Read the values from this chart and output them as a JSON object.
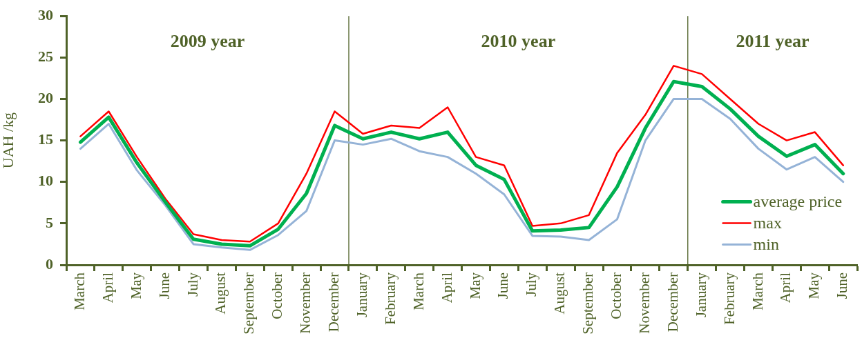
{
  "chart_data": {
    "type": "line",
    "ylabel": "UAH /kg",
    "categories": [
      "March",
      "April",
      "May",
      "June",
      "July",
      "August",
      "September",
      "October",
      "November",
      "December",
      "January",
      "February",
      "March",
      "April",
      "May",
      "June",
      "July",
      "August",
      "September",
      "October",
      "November",
      "December",
      "January",
      "February",
      "March",
      "April",
      "May",
      "June"
    ],
    "series": [
      {
        "name": "average price",
        "color": "#00b050",
        "values": [
          14.8,
          17.8,
          12.3,
          7.6,
          3.1,
          2.5,
          2.3,
          4.3,
          8.6,
          16.8,
          15.2,
          16.0,
          15.2,
          16.0,
          12.0,
          10.3,
          4.1,
          4.2,
          4.5,
          9.4,
          16.5,
          22.1,
          21.5,
          18.8,
          15.5,
          13.1,
          14.5,
          11.0
        ]
      },
      {
        "name": "max",
        "color": "#ff0000",
        "values": [
          15.5,
          18.5,
          13.0,
          8.0,
          3.7,
          3.0,
          2.8,
          5.0,
          11.0,
          18.5,
          15.8,
          16.8,
          16.5,
          19.0,
          13.0,
          12.0,
          4.7,
          5.0,
          6.0,
          13.5,
          18.1,
          24.0,
          23.0,
          20.0,
          17.0,
          15.0,
          16.0,
          12.0
        ]
      },
      {
        "name": "min",
        "color": "#95b3d7",
        "values": [
          14.0,
          17.0,
          11.4,
          7.2,
          2.5,
          2.1,
          1.8,
          3.6,
          6.5,
          15.0,
          14.5,
          15.2,
          13.7,
          13.0,
          11.0,
          8.5,
          3.5,
          3.4,
          3.0,
          5.5,
          15.0,
          20.0,
          20.0,
          17.6,
          14.0,
          11.5,
          13.0,
          10.0
        ]
      }
    ],
    "ylim": [
      0,
      30
    ],
    "yticks": [
      0,
      5,
      10,
      15,
      20,
      25,
      30
    ],
    "annotations": [
      "2009 year",
      "2010 year",
      "2011 year"
    ],
    "legend": "bottom right",
    "marker": "none",
    "line_style": "solid"
  }
}
